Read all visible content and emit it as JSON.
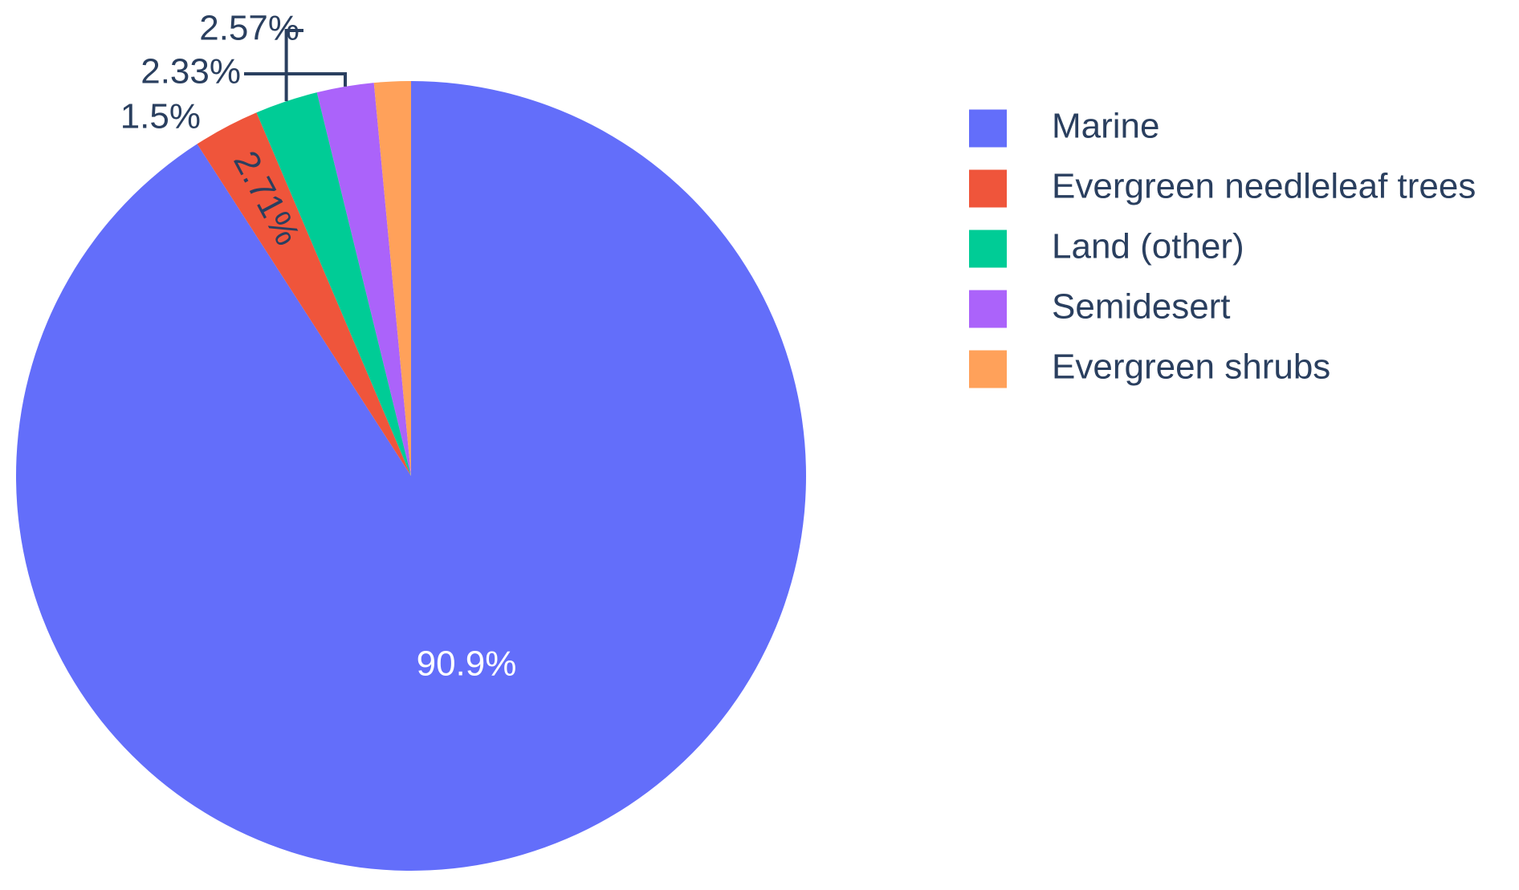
{
  "chart_data": {
    "type": "pie",
    "categories": [
      "Marine",
      "Evergreen needleleaf trees",
      "Land (other)",
      "Semidesert",
      "Evergreen shrubs"
    ],
    "values": [
      90.9,
      2.71,
      2.57,
      2.33,
      1.5
    ],
    "labels": [
      "90.9%",
      "2.71%",
      "2.57%",
      "2.33%",
      "1.5%"
    ],
    "colors": [
      "#636efa",
      "#ef553b",
      "#00cc96",
      "#ab63fa",
      "#ffa15a"
    ],
    "title": "",
    "legend_position": "right",
    "direction": "clockwise",
    "start": "top"
  }
}
